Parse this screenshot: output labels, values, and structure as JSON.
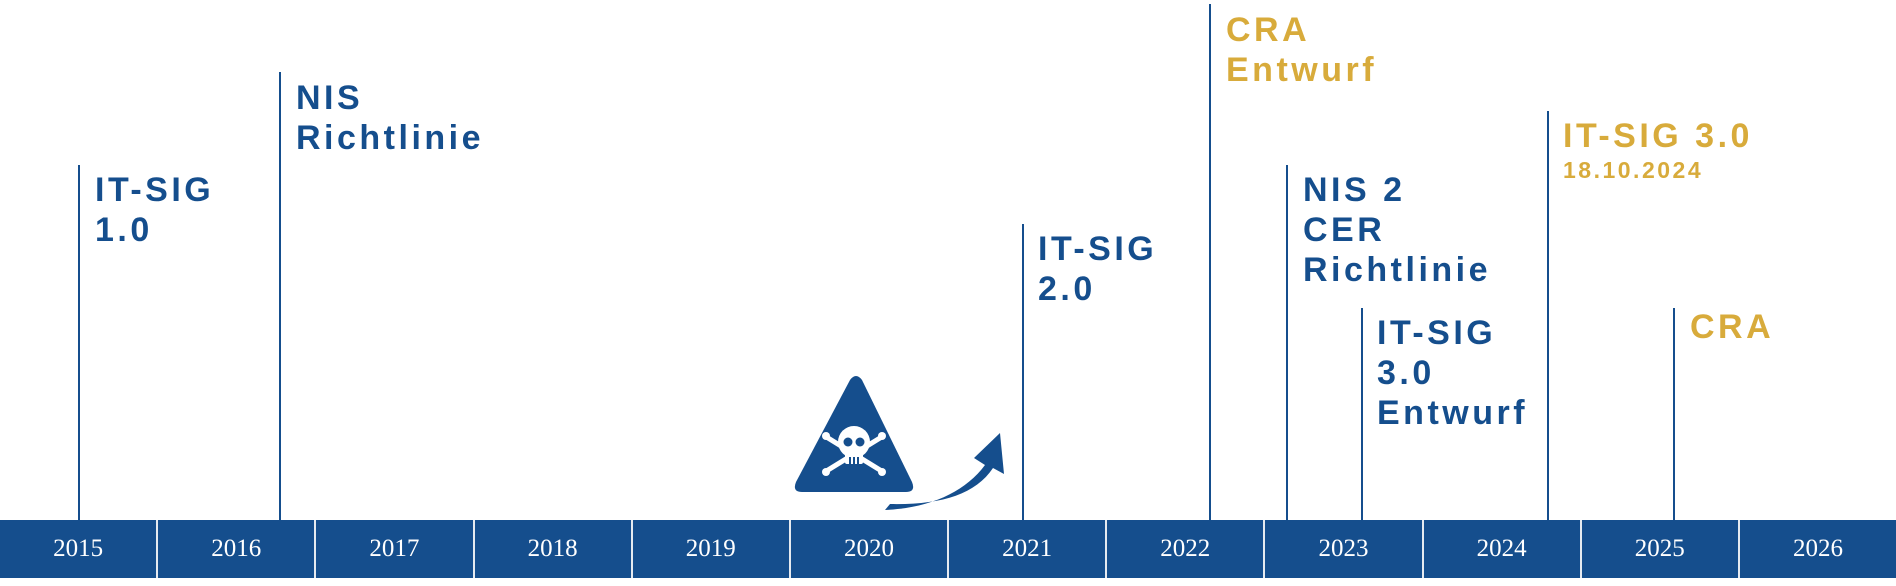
{
  "colors": {
    "blue": "#154e8d",
    "gold": "#d8ab3b"
  },
  "years": [
    "2015",
    "2016",
    "2017",
    "2018",
    "2019",
    "2020",
    "2021",
    "2022",
    "2023",
    "2024",
    "2025",
    "2026"
  ],
  "events": [
    {
      "lines": [
        "IT-SIG",
        "1.0"
      ],
      "color": "blue"
    },
    {
      "lines": [
        "NIS",
        "Richtlinie"
      ],
      "color": "blue"
    },
    {
      "lines": [
        "IT-SIG",
        "2.0"
      ],
      "color": "blue"
    },
    {
      "lines": [
        "CRA",
        "Entwurf"
      ],
      "color": "gold"
    },
    {
      "lines": [
        "NIS 2",
        "CER",
        "Richtlinie"
      ],
      "color": "blue"
    },
    {
      "lines": [
        "IT-SIG",
        "3.0",
        "Entwurf"
      ],
      "color": "blue"
    },
    {
      "lines": [
        "IT-SIG 3.0"
      ],
      "date": "18.10.2024",
      "color": "gold"
    },
    {
      "lines": [
        "CRA"
      ],
      "color": "gold"
    }
  ],
  "icon": "skull-warning-triangle-with-rising-arrow"
}
